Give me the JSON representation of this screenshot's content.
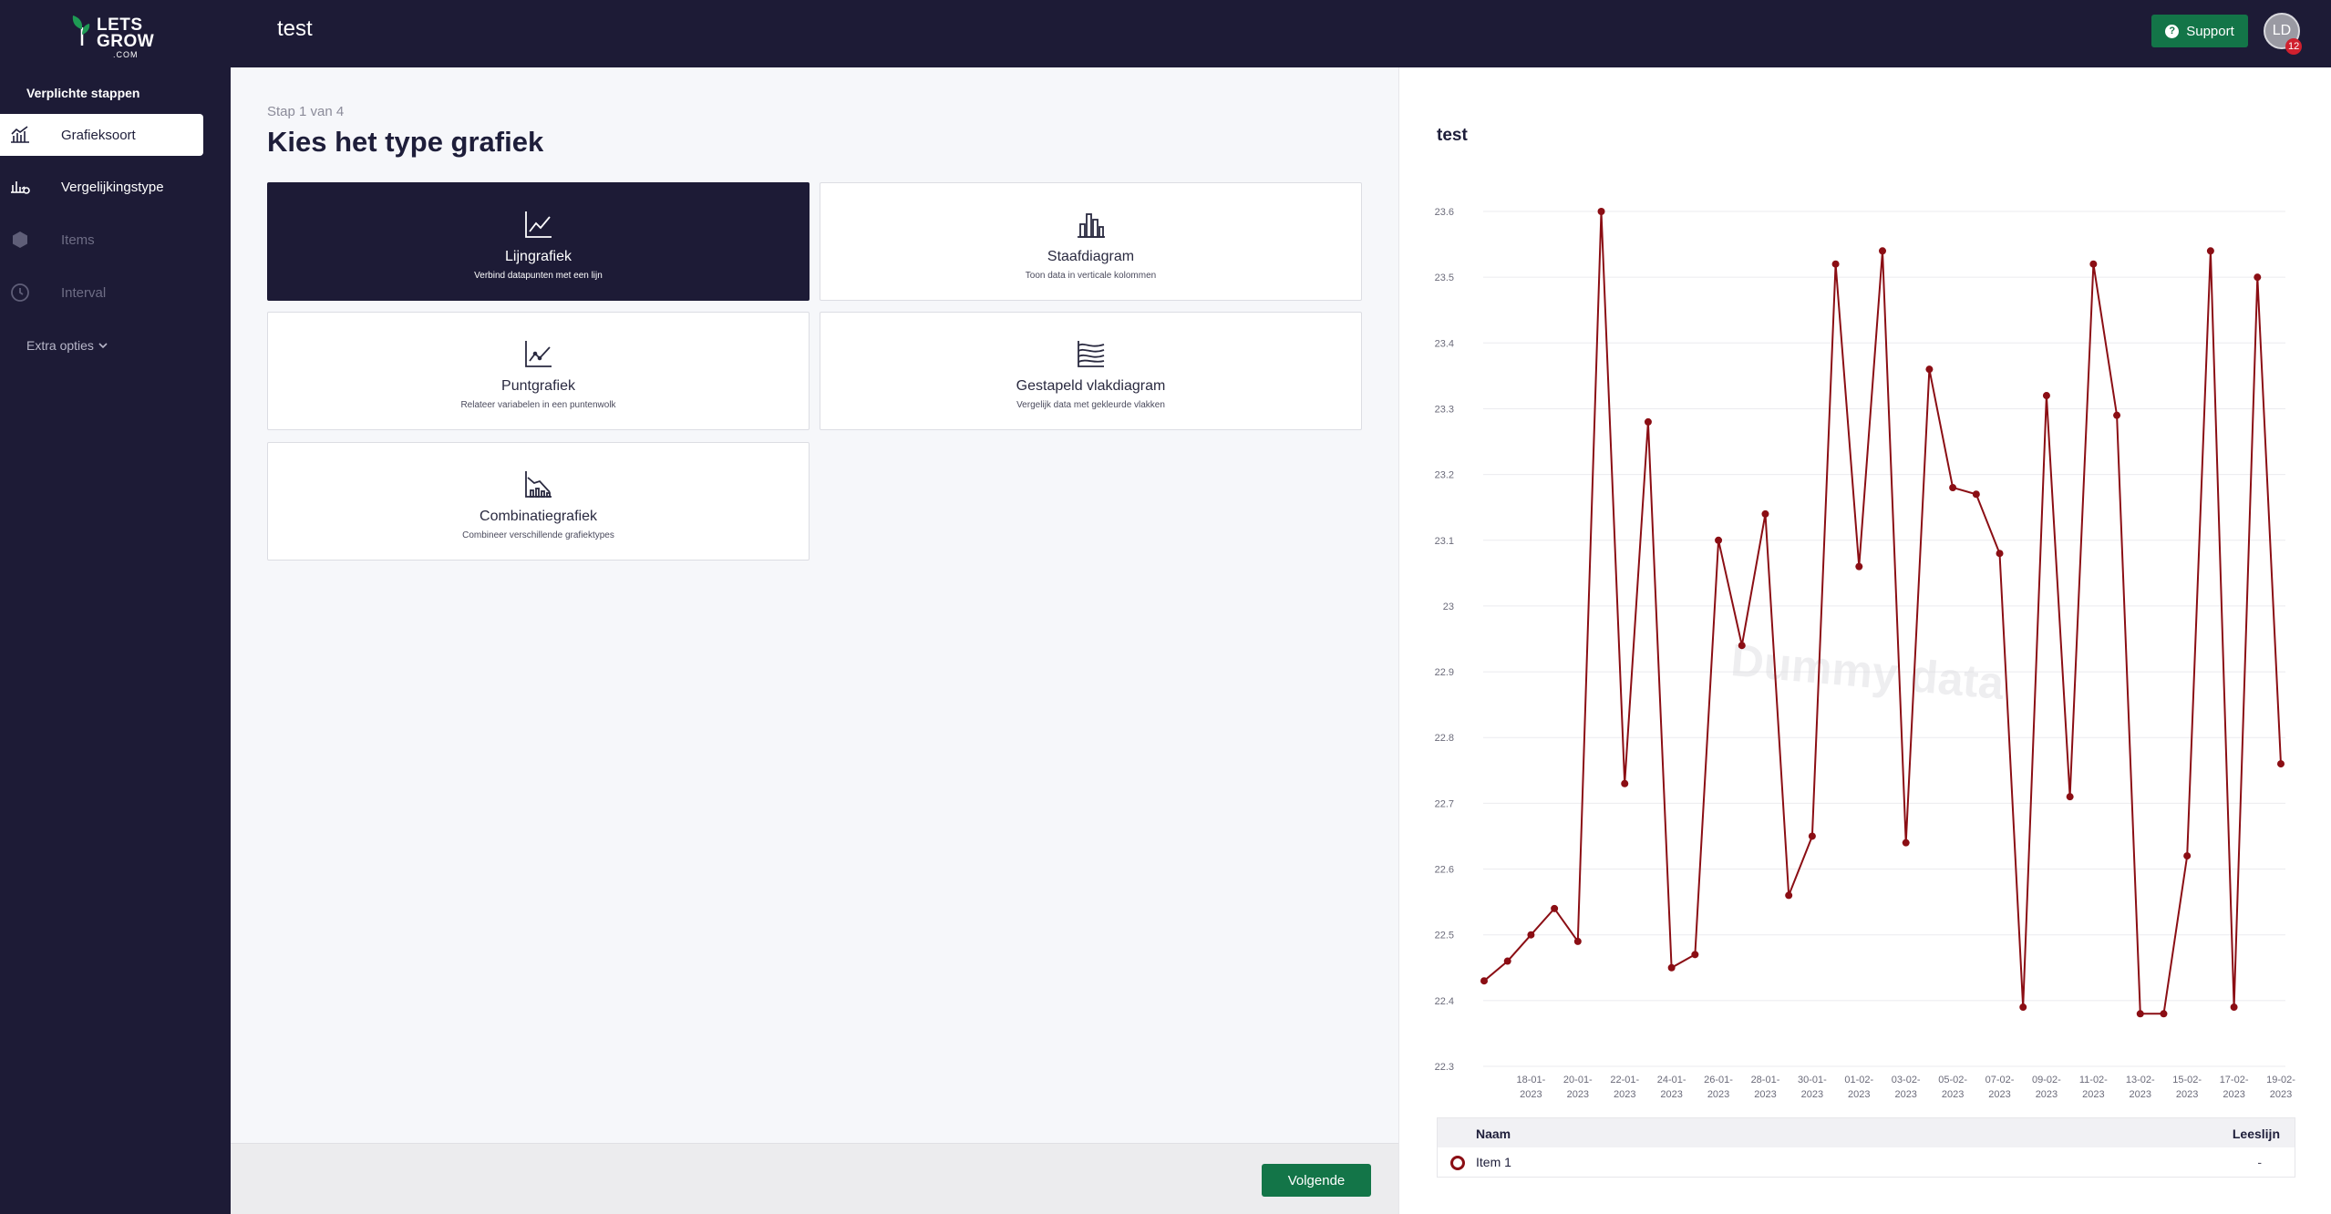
{
  "app": {
    "logo_line1": "LETS",
    "logo_line2": "GROW",
    "logo_line3": ".COM",
    "document_title": "test",
    "support_label": "Support",
    "avatar_initials": "LD",
    "notification_count": "12",
    "accent_color": "#137548",
    "nav_color": "#1d1b36"
  },
  "sidebar": {
    "heading": "Verplichte stappen",
    "items": [
      {
        "label": "Grafieksoort",
        "icon": "chart-type-icon",
        "state": "active"
      },
      {
        "label": "Vergelijkingstype",
        "icon": "compare-icon",
        "state": "enabled"
      },
      {
        "label": "Items",
        "icon": "hexagon-icon",
        "state": "disabled"
      },
      {
        "label": "Interval",
        "icon": "clock-icon",
        "state": "disabled"
      }
    ],
    "extra_options_label": "Extra opties"
  },
  "main": {
    "step_label": "Stap 1 van 4",
    "heading": "Kies het type grafiek",
    "chart_types": [
      {
        "title": "Lijngrafiek",
        "subtitle": "Verbind datapunten met een lijn",
        "icon": "line-chart-icon",
        "selected": true
      },
      {
        "title": "Staafdiagram",
        "subtitle": "Toon data in verticale kolommen",
        "icon": "bar-chart-icon",
        "selected": false
      },
      {
        "title": "Puntgrafiek",
        "subtitle": "Relateer variabelen in een puntenwolk",
        "icon": "scatter-chart-icon",
        "selected": false
      },
      {
        "title": "Gestapeld vlakdiagram",
        "subtitle": "Vergelijk data met gekleurde vlakken",
        "icon": "stacked-area-icon",
        "selected": false
      },
      {
        "title": "Combinatiegrafiek",
        "subtitle": "Combineer verschillende grafiektypes",
        "icon": "combo-chart-icon",
        "selected": false
      }
    ],
    "next_label": "Volgende"
  },
  "preview": {
    "title": "test",
    "watermark": "Dummy data",
    "legend": {
      "col_name": "Naam",
      "col_reading": "Leeslijn",
      "rows": [
        {
          "name": "Item 1",
          "reading": "-",
          "color": "#8b0e14"
        }
      ]
    }
  },
  "chart_data": {
    "type": "line",
    "title": "test",
    "xlabel": "",
    "ylabel": "",
    "ylim": [
      22.3,
      23.65
    ],
    "yticks": [
      "23.6",
      "23.5",
      "23.4",
      "23.3",
      "23.2",
      "23.1",
      "23",
      "22.9",
      "22.8",
      "22.7",
      "22.6",
      "22.5",
      "22.4",
      "22.3"
    ],
    "ytick_values": [
      23.6,
      23.5,
      23.4,
      23.3,
      23.2,
      23.1,
      23.0,
      22.9,
      22.8,
      22.7,
      22.6,
      22.5,
      22.4,
      22.3
    ],
    "xticks": [
      {
        "day": "18-01-",
        "year": "2023",
        "index": 2
      },
      {
        "day": "20-01-",
        "year": "2023",
        "index": 4
      },
      {
        "day": "22-01-",
        "year": "2023",
        "index": 6
      },
      {
        "day": "24-01-",
        "year": "2023",
        "index": 8
      },
      {
        "day": "26-01-",
        "year": "2023",
        "index": 10
      },
      {
        "day": "28-01-",
        "year": "2023",
        "index": 12
      },
      {
        "day": "30-01-",
        "year": "2023",
        "index": 14
      },
      {
        "day": "01-02-",
        "year": "2023",
        "index": 16
      },
      {
        "day": "03-02-",
        "year": "2023",
        "index": 18
      },
      {
        "day": "05-02-",
        "year": "2023",
        "index": 20
      },
      {
        "day": "07-02-",
        "year": "2023",
        "index": 22
      },
      {
        "day": "09-02-",
        "year": "2023",
        "index": 24
      },
      {
        "day": "11-02-",
        "year": "2023",
        "index": 26
      },
      {
        "day": "13-02-",
        "year": "2023",
        "index": 28
      },
      {
        "day": "15-02-",
        "year": "2023",
        "index": 30
      },
      {
        "day": "17-02-",
        "year": "2023",
        "index": 32
      },
      {
        "day": "19-02-",
        "year": "2023",
        "index": 34
      }
    ],
    "grid": true,
    "series": [
      {
        "name": "Item 1",
        "color": "#8b0e14",
        "values": [
          22.43,
          22.46,
          22.5,
          22.54,
          22.49,
          23.6,
          22.73,
          23.28,
          22.45,
          22.47,
          23.1,
          22.94,
          23.14,
          22.56,
          22.65,
          23.52,
          23.06,
          23.54,
          22.64,
          23.36,
          23.18,
          23.17,
          23.08,
          22.39,
          23.32,
          22.71,
          23.52,
          23.29,
          22.38,
          22.38,
          22.62,
          23.54,
          22.39,
          23.5,
          22.76
        ]
      }
    ]
  }
}
